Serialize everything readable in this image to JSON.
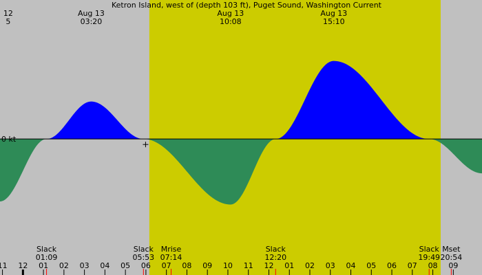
{
  "chart_data": {
    "type": "area",
    "title": "Ketron Island, west of (depth 103 ft), Puget Sound, Washington Current",
    "xlabel": "",
    "ylabel": "",
    "zero_label": "0 kt",
    "x_unit": "hours (local time)",
    "xlim": [
      -1.12,
      22.4
    ],
    "ylim": [
      -1.65,
      2.05
    ],
    "colors": {
      "night": "#c0c0c0",
      "day": "#cccc00",
      "flood": "#0000ff",
      "ebb": "#2e8b57",
      "baseline": "#000000",
      "marker": "#ff0000"
    },
    "daylight": {
      "start": "06:10",
      "end": "20:23"
    },
    "series": [
      {
        "values": [
          {
            "t": "-1.12",
            "v": -1.0
          },
          {
            "t": "01:09",
            "v": 0.0
          },
          {
            "t": "03:20",
            "v": 0.6
          },
          {
            "t": "05:53",
            "v": 0.0
          },
          {
            "t": "10:08",
            "v": -1.05
          },
          {
            "t": "12:20",
            "v": 0.0
          },
          {
            "t": "15:10",
            "v": 1.25
          },
          {
            "t": "19:49",
            "v": 0.0
          },
          {
            "t": "22.4",
            "v": -0.55
          }
        ]
      }
    ],
    "top_labels": [
      {
        "date": "12",
        "time": "5",
        "t": -0.72
      },
      {
        "date": "Aug 13",
        "time": "03:20",
        "t": 3.33
      },
      {
        "date": "Aug 13",
        "time": "10:08",
        "t": 10.13
      },
      {
        "date": "Aug 13",
        "time": "15:10",
        "t": 15.17
      }
    ],
    "events": [
      {
        "label": "Slack",
        "time": "01:09",
        "t": 1.15
      },
      {
        "label": "Slack",
        "time": "05:53",
        "t": 5.88
      },
      {
        "label": "Mrise",
        "time": "07:14",
        "t": 7.23
      },
      {
        "label": "Slack",
        "time": "12:20",
        "t": 12.33
      },
      {
        "label": "Slack",
        "time": "19:49",
        "t": 19.82
      },
      {
        "label": "Mset",
        "time": "20:54",
        "t": 20.9
      }
    ],
    "hour_ticks": [
      {
        "label": "11",
        "t": -1
      },
      {
        "label": "12",
        "t": 0
      },
      {
        "label": "01",
        "t": 1
      },
      {
        "label": "02",
        "t": 2
      },
      {
        "label": "03",
        "t": 3
      },
      {
        "label": "04",
        "t": 4
      },
      {
        "label": "05",
        "t": 5
      },
      {
        "label": "06",
        "t": 6
      },
      {
        "label": "07",
        "t": 7
      },
      {
        "label": "08",
        "t": 8
      },
      {
        "label": "09",
        "t": 9
      },
      {
        "label": "10",
        "t": 10
      },
      {
        "label": "11",
        "t": 11
      },
      {
        "label": "12",
        "t": 12
      },
      {
        "label": "01",
        "t": 13
      },
      {
        "label": "02",
        "t": 14
      },
      {
        "label": "03",
        "t": 15
      },
      {
        "label": "04",
        "t": 16
      },
      {
        "label": "05",
        "t": 17
      },
      {
        "label": "06",
        "t": 18
      },
      {
        "label": "07",
        "t": 19
      },
      {
        "label": "08",
        "t": 20
      },
      {
        "label": "09",
        "t": 21
      }
    ]
  }
}
